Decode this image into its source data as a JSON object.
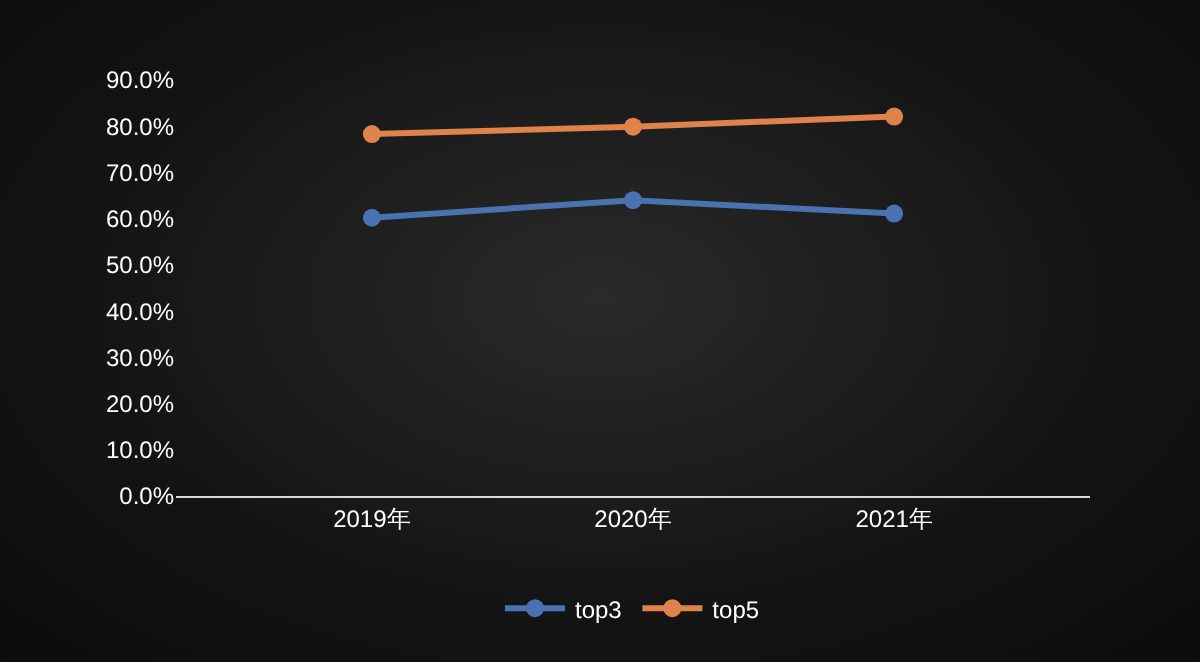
{
  "chart_data": {
    "type": "line",
    "categories": [
      "2019年",
      "2020年",
      "2021年"
    ],
    "series": [
      {
        "name": "top3",
        "color": "#4a72b0",
        "values": [
          60.2,
          64.0,
          61.1
        ]
      },
      {
        "name": "top5",
        "color": "#e0834a",
        "values": [
          78.3,
          79.9,
          82.1
        ]
      }
    ],
    "ylim": [
      0,
      90
    ],
    "yticks": [
      {
        "value": 0,
        "label": "0.0%"
      },
      {
        "value": 10,
        "label": "10.0%"
      },
      {
        "value": 20,
        "label": "20.0%"
      },
      {
        "value": 30,
        "label": "30.0%"
      },
      {
        "value": 40,
        "label": "40.0%"
      },
      {
        "value": 50,
        "label": "50.0%"
      },
      {
        "value": 60,
        "label": "60.0%"
      },
      {
        "value": 70,
        "label": "70.0%"
      },
      {
        "value": 80,
        "label": "80.0%"
      },
      {
        "value": 90,
        "label": "90.0%"
      }
    ],
    "grid": false,
    "legend": "bottom",
    "marker": "circle",
    "line_style": "solid"
  }
}
